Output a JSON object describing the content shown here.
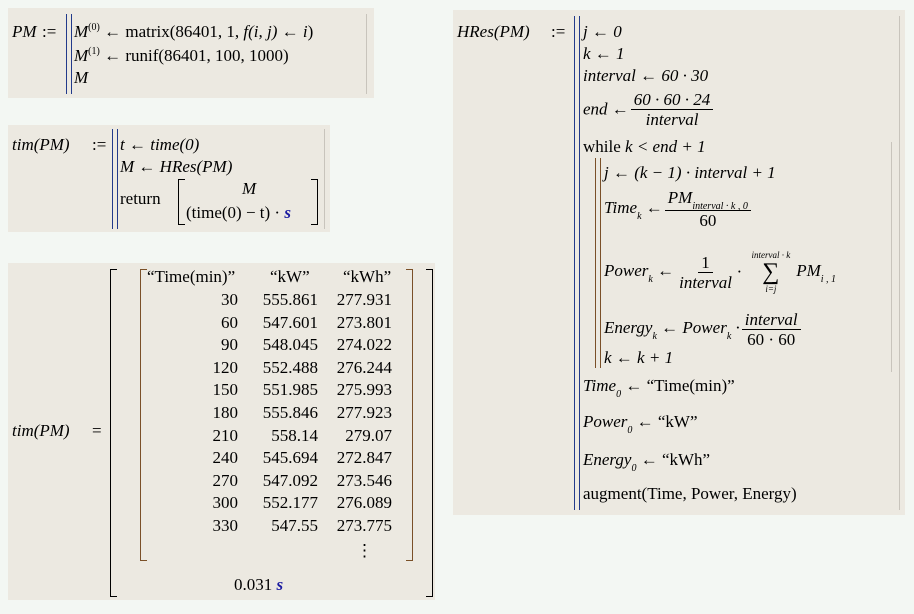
{
  "pm_def": {
    "lhs": "PM",
    "assign": ":=",
    "lines": [
      {
        "var": "M",
        "sup": "(0)",
        "expr": "← matrix(86401, 1, ",
        "fexpr": "f(i, j) ← i",
        "close": ")"
      },
      {
        "var": "M",
        "sup": "(1)",
        "expr": "← runif(86401, 100, 1000)"
      },
      {
        "var": "M"
      }
    ]
  },
  "tim_def": {
    "lhs": "tim(PM)",
    "assign": ":=",
    "line1": "t ← time(0)",
    "line2": "M ← HRes(PM)",
    "return_kw": "return",
    "ret_top": "M",
    "ret_bottom": "(time(0) − t) ·",
    "unit": "s"
  },
  "tim_result": {
    "lhs": "tim(PM)",
    "equals": "=",
    "headers": [
      "“Time(min)”",
      "“kW”",
      "“kWh”"
    ],
    "rows": [
      [
        "30",
        "555.861",
        "277.931"
      ],
      [
        "60",
        "547.601",
        "273.801"
      ],
      [
        "90",
        "548.045",
        "274.022"
      ],
      [
        "120",
        "552.488",
        "276.244"
      ],
      [
        "150",
        "551.985",
        "275.993"
      ],
      [
        "180",
        "555.846",
        "277.923"
      ],
      [
        "210",
        "558.14",
        "279.07"
      ],
      [
        "240",
        "545.694",
        "272.847"
      ],
      [
        "270",
        "547.092",
        "273.546"
      ],
      [
        "300",
        "552.177",
        "276.089"
      ],
      [
        "330",
        "547.55",
        "273.775"
      ]
    ],
    "ellipsis": "⋮",
    "time_value": "0.031",
    "time_unit": "s"
  },
  "hres_def": {
    "lhs": "HRes(PM)",
    "assign": ":=",
    "l1": "j ← 0",
    "l2": "k ← 1",
    "l3": "interval ← 60 · 30",
    "l4_lhs": "end ←",
    "l4_num": "60 · 60 · 24",
    "l4_den": "interval",
    "while_kw": "while",
    "while_cond": "k < end + 1",
    "w1": "j ← (k − 1) · interval + 1",
    "w2_lhs": "Time",
    "w2_num": "PM",
    "w2_num_sub": "interval · k , 0",
    "w2_den": "60",
    "w3_lhs": "Power",
    "w3_num": "1",
    "w3_den": "interval",
    "w3_sum_top": "interval · k",
    "w3_sum_bot": "i=j",
    "w3_term": "PM",
    "w3_term_sub": "i , 1",
    "w4_lhs": "Energy",
    "w4_mid": "← Power",
    "w4_num": "interval",
    "w4_den": "60 · 60",
    "w5": "k ← k + 1",
    "sub_k": "k",
    "sub_0": "0",
    "arrow": "←",
    "dot": "·",
    "sum": "∑",
    "a1_lhs": "Time",
    "a1_rhs": "← “Time(min)”",
    "a2_lhs": "Power",
    "a2_rhs": "← “kW”",
    "a3_lhs": "Energy",
    "a3_rhs": "← “kWh”",
    "last": "augment(Time, Power, Energy)"
  }
}
